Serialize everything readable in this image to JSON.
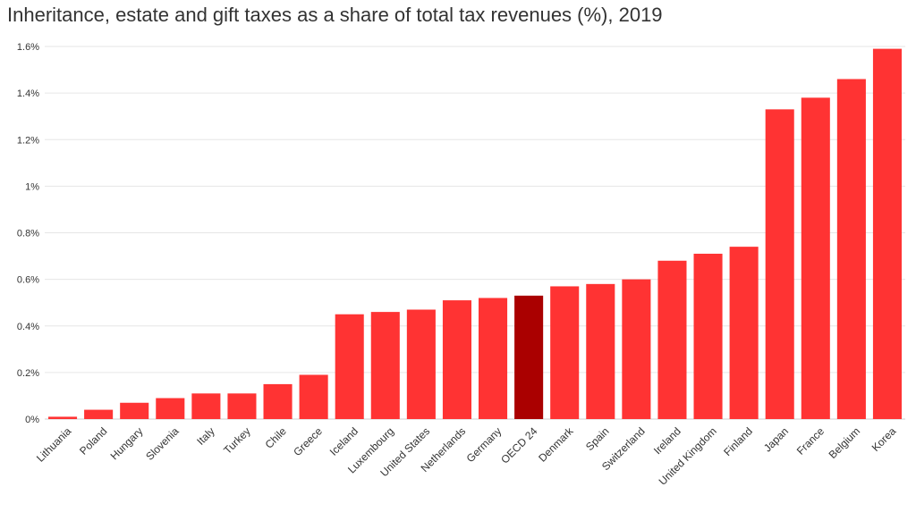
{
  "chart_data": {
    "type": "bar",
    "title": "Inheritance, estate and gift taxes as a share of total tax revenues (%), 2019",
    "xlabel": "",
    "ylabel": "",
    "ylim": [
      0,
      1.6
    ],
    "yticks": [
      "0%",
      "0.2%",
      "0.4%",
      "0.6%",
      "0.8%",
      "1%",
      "1.2%",
      "1.4%",
      "1.6%"
    ],
    "grid": true,
    "categories": [
      "Lithuania",
      "Poland",
      "Hungary",
      "Slovenia",
      "Italy",
      "Turkey",
      "Chile",
      "Greece",
      "Iceland",
      "Luxembourg",
      "United States",
      "Netherlands",
      "Germany",
      "OECD 24",
      "Denmark",
      "Spain",
      "Switzerland",
      "Ireland",
      "United Kingdom",
      "Finland",
      "Japan",
      "France",
      "Belgium",
      "Korea"
    ],
    "values": [
      0.01,
      0.04,
      0.07,
      0.09,
      0.11,
      0.11,
      0.15,
      0.19,
      0.45,
      0.46,
      0.47,
      0.51,
      0.52,
      0.53,
      0.57,
      0.58,
      0.6,
      0.68,
      0.71,
      0.74,
      1.33,
      1.38,
      1.46,
      1.59
    ],
    "highlight": "OECD 24",
    "colors": {
      "bar": "#ff3333",
      "highlight": "#aa0000",
      "grid": "#e6e6e6",
      "text": "#333333"
    }
  }
}
